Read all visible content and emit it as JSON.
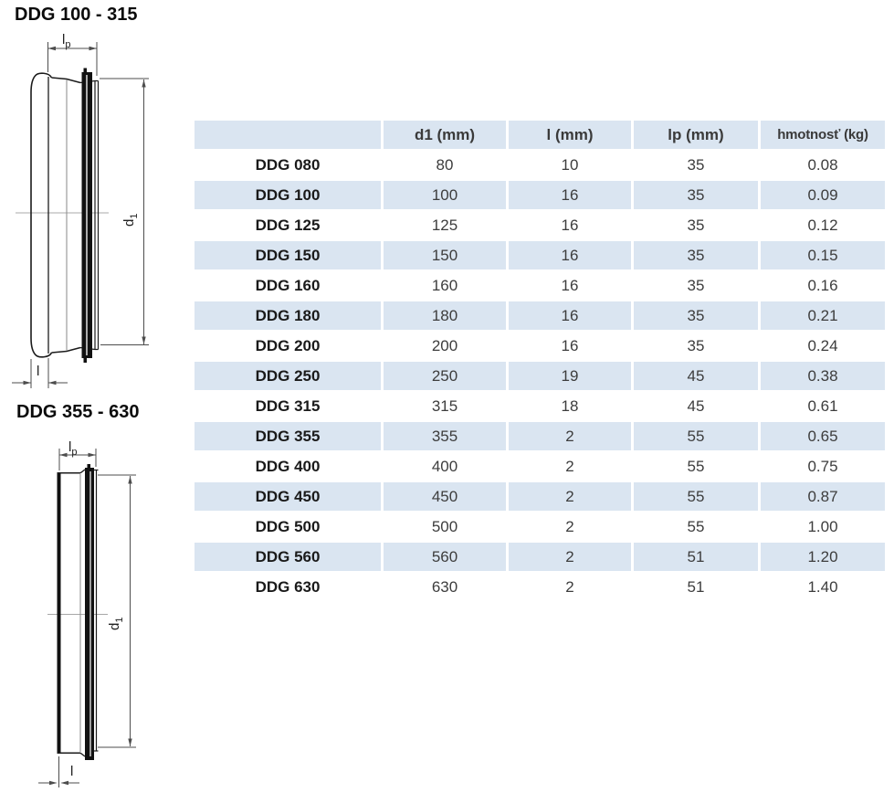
{
  "page": {
    "background": "#ffffff"
  },
  "diagrams": {
    "top": {
      "title": "DDG 100 - 315",
      "labels": {
        "lp": {
          "base": "l",
          "sub": "p"
        },
        "d1": {
          "base": "d",
          "sub": "1"
        },
        "l": {
          "base": "l",
          "sub": ""
        }
      }
    },
    "bottom": {
      "title": "DDG 355 - 630",
      "labels": {
        "lp": {
          "base": "l",
          "sub": "p"
        },
        "d1": {
          "base": "d",
          "sub": "1"
        },
        "l": {
          "base": "l",
          "sub": ""
        }
      }
    }
  },
  "table": {
    "headers": [
      "",
      "d1 (mm)",
      "l (mm)",
      "lp (mm)",
      "hmotnosť (kg)"
    ],
    "rows": [
      [
        "DDG 080",
        "80",
        "10",
        "35",
        "0.08"
      ],
      [
        "DDG 100",
        "100",
        "16",
        "35",
        "0.09"
      ],
      [
        "DDG 125",
        "125",
        "16",
        "35",
        "0.12"
      ],
      [
        "DDG 150",
        "150",
        "16",
        "35",
        "0.15"
      ],
      [
        "DDG 160",
        "160",
        "16",
        "35",
        "0.16"
      ],
      [
        "DDG 180",
        "180",
        "16",
        "35",
        "0.21"
      ],
      [
        "DDG 200",
        "200",
        "16",
        "35",
        "0.24"
      ],
      [
        "DDG 250",
        "250",
        "19",
        "45",
        "0.38"
      ],
      [
        "DDG 315",
        "315",
        "18",
        "45",
        "0.61"
      ],
      [
        "DDG 355",
        "355",
        "2",
        "55",
        "0.65"
      ],
      [
        "DDG 400",
        "400",
        "2",
        "55",
        "0.75"
      ],
      [
        "DDG 450",
        "450",
        "2",
        "55",
        "0.87"
      ],
      [
        "DDG 500",
        "500",
        "2",
        "55",
        "1.00"
      ],
      [
        "DDG 560",
        "560",
        "2",
        "51",
        "1.20"
      ],
      [
        "DDG 630",
        "630",
        "2",
        "51",
        "1.40"
      ]
    ],
    "colors": {
      "header_bg": "#dae5f1",
      "alt_row_bg": "#dae5f1",
      "row_bg": "#ffffff",
      "text": "#3d3d3d"
    }
  }
}
